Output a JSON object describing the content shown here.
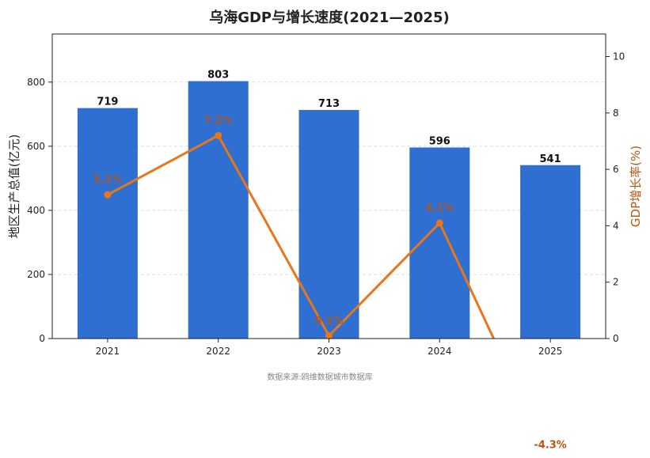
{
  "colors": {
    "bar": "#2f6fd1",
    "line": "#e8761a",
    "growth_text": "#b8560f",
    "grid": "#dddddd",
    "axis": "#222222"
  },
  "chart_data": {
    "type": "bar",
    "title": "乌海GDP与增长速度(2021—2025)",
    "categories": [
      "2021",
      "2022",
      "2023",
      "2024",
      "2025"
    ],
    "series": [
      {
        "name": "",
        "type": "bar",
        "axis": "left",
        "values": [
          719,
          803,
          713,
          596,
          541
        ],
        "labels": [
          "719",
          "803",
          "713",
          "596",
          "541"
        ]
      },
      {
        "name": "",
        "type": "line",
        "axis": "right",
        "values": [
          5.1,
          7.2,
          0.1,
          4.1,
          -4.3
        ],
        "labels": [
          "5.1%",
          "7.2%",
          "0.1%",
          "4.1%",
          "-4.3%"
        ]
      }
    ],
    "ylabel": "地区生产总值(亿元)",
    "y2label": "GDP增长率(%)",
    "ylim": [
      0,
      950
    ],
    "y2lim": [
      0,
      10.8
    ],
    "yticks": [
      0,
      200,
      400,
      600,
      800
    ],
    "y2ticks": [
      0,
      2,
      4,
      6,
      8,
      10
    ],
    "grid": true,
    "source": "数据来源:鸥维数据城市数据库"
  }
}
